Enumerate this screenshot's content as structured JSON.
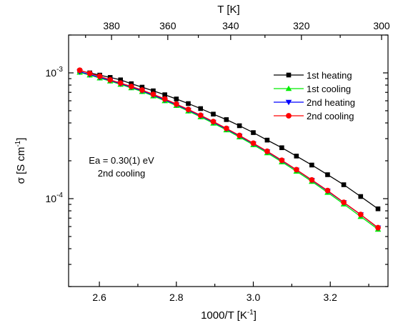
{
  "chart_data": {
    "type": "line",
    "xlabel": "1000/T [K",
    "xlabel_sup": "-1",
    "xlabel_end": "]",
    "ylabel": "σ [S cm",
    "ylabel_sup": "-1",
    "ylabel_end": "]",
    "top_xlabel": "T [K]",
    "xlim": [
      2.52,
      3.35
    ],
    "ylim": [
      2e-05,
      0.002
    ],
    "y_scale": "log",
    "x_ticks": [
      2.6,
      2.8,
      3.0,
      3.2
    ],
    "x_tick_labels": [
      "2.6",
      "2.8",
      "3.0",
      "3.2"
    ],
    "top_ticks_T": [
      380,
      360,
      340,
      320,
      300
    ],
    "top_tick_labels": [
      "380",
      "360",
      "340",
      "320",
      "300"
    ],
    "y_ticks": [
      0.001,
      0.0001
    ],
    "y_tick_labels": [
      {
        "base": "10",
        "exp": "-3"
      },
      {
        "base": "10",
        "exp": "-4"
      }
    ],
    "legend_position": "top-right",
    "annotation": [
      "Ea = 0.30(1) eV",
      "2nd cooling"
    ],
    "series": [
      {
        "name": "1st heating",
        "color": "#000000",
        "marker": "square",
        "x": [
          2.549,
          2.575,
          2.601,
          2.628,
          2.655,
          2.683,
          2.711,
          2.74,
          2.77,
          2.8,
          2.831,
          2.863,
          2.896,
          2.93,
          2.964,
          3.0,
          3.036,
          3.074,
          3.112,
          3.152,
          3.193,
          3.235,
          3.279,
          3.324
        ],
        "y": [
          0.00104,
          0.001,
          0.00096,
          0.00092,
          0.00088,
          0.00082,
          0.00077,
          0.00072,
          0.00067,
          0.00062,
          0.00057,
          0.00052,
          0.00047,
          0.000425,
          0.00038,
          0.000335,
          0.000292,
          0.000254,
          0.000218,
          0.000185,
          0.000155,
          0.000129,
          0.000104,
          8.3e-05
        ]
      },
      {
        "name": "1st cooling",
        "color": "#00ee00",
        "marker": "triangle-up",
        "x": [
          2.549,
          2.575,
          2.601,
          2.628,
          2.655,
          2.683,
          2.711,
          2.74,
          2.77,
          2.8,
          2.831,
          2.863,
          2.896,
          2.93,
          2.964,
          3.0,
          3.036,
          3.074,
          3.112,
          3.152,
          3.193,
          3.235,
          3.279,
          3.324
        ],
        "y": [
          0.00101,
          0.00096,
          0.00091,
          0.00086,
          0.00081,
          0.00076,
          0.00071,
          0.000655,
          0.0006,
          0.00055,
          0.000497,
          0.000447,
          0.000398,
          0.000352,
          0.000309,
          0.000268,
          0.000231,
          0.000196,
          0.000165,
          0.000137,
          0.000112,
          9.05e-05,
          7.2e-05,
          5.7e-05
        ]
      },
      {
        "name": "2nd heating",
        "color": "#0000ff",
        "marker": "triangle-down",
        "x": [
          2.549,
          2.575,
          2.601,
          2.628,
          2.655,
          2.683,
          2.711,
          2.74,
          2.77,
          2.8,
          2.831,
          2.863,
          2.896,
          2.93,
          2.964,
          3.0,
          3.036,
          3.074,
          3.112,
          3.152,
          3.193,
          3.235,
          3.279,
          3.324
        ],
        "y": [
          0.00102,
          0.00097,
          0.00092,
          0.00087,
          0.00082,
          0.00077,
          0.00072,
          0.000665,
          0.00061,
          0.000558,
          0.000505,
          0.000455,
          0.000405,
          0.000358,
          0.000315,
          0.000273,
          0.000236,
          0.0002,
          0.000169,
          0.00014,
          0.000115,
          9.3e-05,
          7.45e-05,
          5.85e-05
        ]
      },
      {
        "name": "2nd cooling",
        "color": "#ff0000",
        "marker": "circle",
        "x": [
          2.549,
          2.575,
          2.601,
          2.628,
          2.655,
          2.683,
          2.711,
          2.74,
          2.77,
          2.8,
          2.831,
          2.863,
          2.896,
          2.93,
          2.964,
          3.0,
          3.036,
          3.074,
          3.112,
          3.152,
          3.193,
          3.235,
          3.279,
          3.324
        ],
        "y": [
          0.00105,
          0.00099,
          0.00094,
          0.00088,
          0.00083,
          0.00078,
          0.00073,
          0.000675,
          0.00062,
          0.000565,
          0.000512,
          0.00046,
          0.00041,
          0.000362,
          0.000318,
          0.000276,
          0.000238,
          0.000202,
          0.00017,
          0.000141,
          0.000116,
          9.35e-05,
          7.48e-05,
          5.88e-05
        ]
      }
    ]
  }
}
